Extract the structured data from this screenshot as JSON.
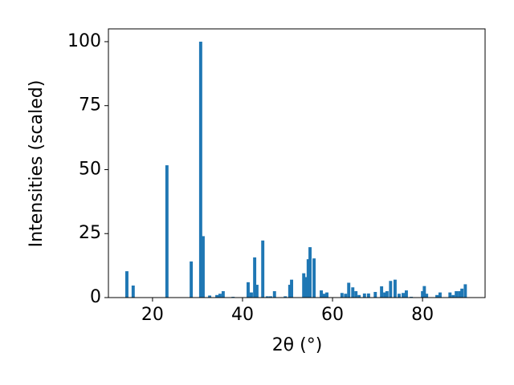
{
  "chart_data": {
    "type": "bar",
    "xlabel": "2θ (°)",
    "ylabel": "Intensities (scaled)",
    "x": [
      14.3,
      15.7,
      23.2,
      28.6,
      30.7,
      31.25,
      32.7,
      34.3,
      35.0,
      35.7,
      37.9,
      41.25,
      41.96,
      42.7,
      43.2,
      44.5,
      45.5,
      46.25,
      47.1,
      49.5,
      50.5,
      50.9,
      53.6,
      54.1,
      54.6,
      55.0,
      55.9,
      57.5,
      58.2,
      58.75,
      62.1,
      62.9,
      63.6,
      64.5,
      65.2,
      65.9,
      67.1,
      68.0,
      69.5,
      70.9,
      71.6,
      72.1,
      72.9,
      73.9,
      74.8,
      75.7,
      76.4,
      77.5,
      80.0,
      80.4,
      80.9,
      83.2,
      83.9,
      86.1,
      86.8,
      87.5,
      88.2,
      88.75,
      89.5
    ],
    "values": [
      10.3,
      4.7,
      51.7,
      14.1,
      100,
      24,
      0.8,
      1,
      1.5,
      2.5,
      0.3,
      6,
      2,
      15.7,
      5,
      22.3,
      0.5,
      0.5,
      2.5,
      0.5,
      5,
      7,
      9.5,
      8,
      15,
      19.7,
      15.3,
      2.8,
      1.5,
      2,
      1.8,
      1.5,
      5.8,
      4,
      2.5,
      1,
      1.6,
      1.6,
      2.2,
      4.4,
      2,
      2.5,
      6.5,
      7,
      1.5,
      1.8,
      2.8,
      0.3,
      2.5,
      4.5,
      1.5,
      1,
      2,
      2,
      1,
      2.5,
      2.5,
      3.5,
      5.2
    ],
    "color": "#1f77b4",
    "xlim": [
      10.2,
      93.9
    ],
    "ylim": [
      0,
      105
    ],
    "xticks": [
      20,
      40,
      60,
      80
    ],
    "yticks": [
      0,
      25,
      50,
      75,
      100
    ]
  }
}
